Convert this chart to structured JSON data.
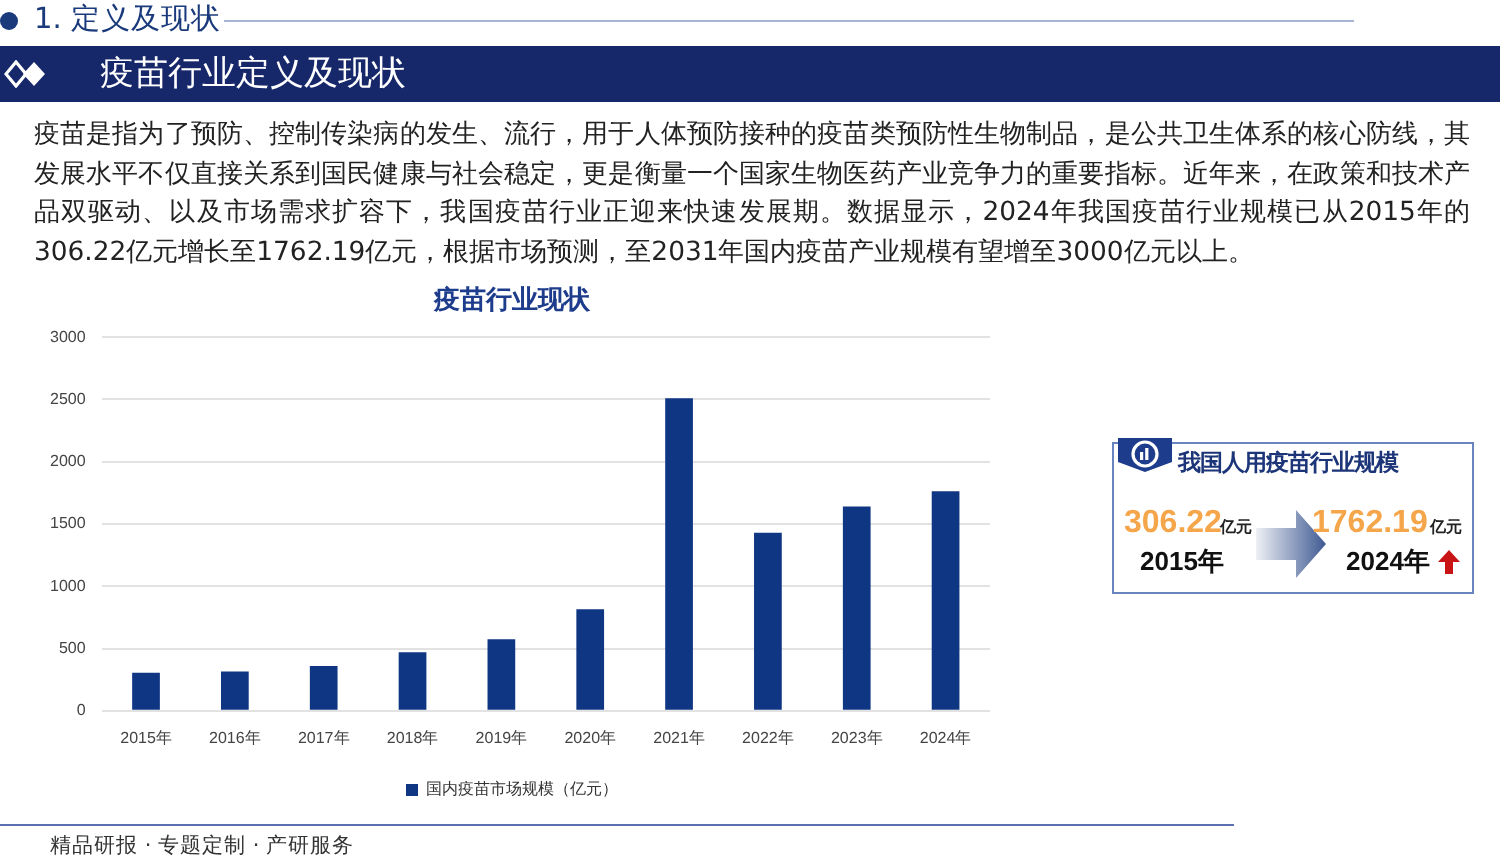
{
  "chart_data": {
    "type": "bar",
    "title": "疫苗行业现状",
    "categories": [
      "2015年",
      "2016年",
      "2017年",
      "2018年",
      "2019年",
      "2020年",
      "2021年",
      "2022年",
      "2023年",
      "2024年"
    ],
    "series": [
      {
        "name": "国内疫苗市场规模（亿元）",
        "color": "#0f3683",
        "values": [
          306.22,
          315,
          360,
          470,
          575,
          815,
          2510,
          1430,
          1640,
          1762.19
        ]
      }
    ],
    "ylim": [
      0,
      3000
    ],
    "yticks": [
      0,
      500,
      1000,
      1500,
      2000,
      2500,
      3000
    ],
    "grid": "y",
    "legend": "bottom",
    "annotations": [
      "1. 定义及现状",
      "疫苗行业定义及现状",
      "疫苗是指为了预防、控制传染病的发生、流行，用于人体预防接种的疫苗类预防性生物制品，是公共卫生体系的核心防线，其发展水平不仅直接关系到国民健康与社会稳定，更是衡量一个国家生物医药产业竞争力的重要指标。近年来，在政策和技术产品双驱动、以及市场需求扩容下，我国疫苗行业正迎来快速发展期。数据显示，2024年我国疫苗行业规模已从2015年的306.22亿元增长至1762.19亿元，根据市场预测，至2031年国内疫苗产业规模有望增至3000亿元以上。",
      "我国人用疫苗行业规模",
      "306.22",
      "亿元",
      "2015年",
      "1762.19",
      "亿元",
      "2024年",
      "精品研报 · 专题定制 · 产研服务"
    ]
  }
}
